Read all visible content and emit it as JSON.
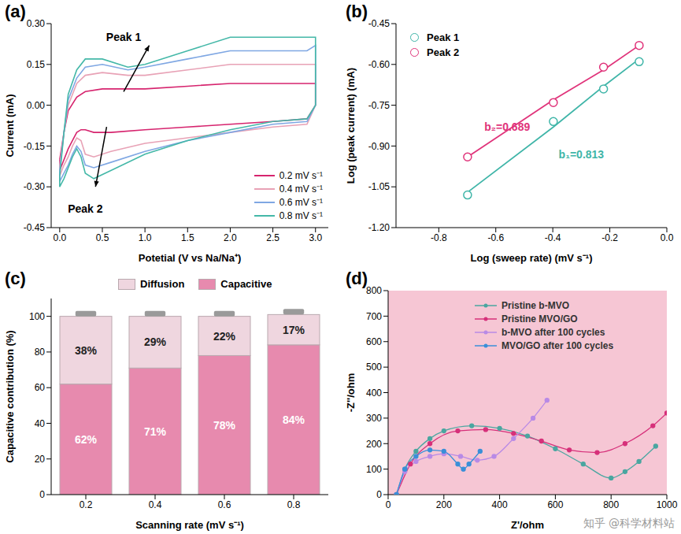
{
  "chart_data": [
    {
      "title": "(a)",
      "type": "line",
      "x_label": "Potetial (V vs Na/Na⁺)",
      "y_label": "Current (mA)",
      "xlim": [
        -0.1,
        3.15
      ],
      "xticks": [
        {
          "value": 0,
          "label": "0.0"
        },
        0.5,
        {
          "value": 1,
          "label": "1.0"
        },
        1.5,
        {
          "value": 2,
          "label": "2.0"
        },
        2.5,
        {
          "value": 3,
          "label": "3.0"
        }
      ],
      "ylim": [
        -0.45,
        0.3
      ],
      "yticks": [
        -0.45,
        {
          "value": -0.3,
          "label": "-0.30"
        },
        -0.15,
        {
          "value": 0,
          "label": "0.00"
        },
        0.15,
        {
          "value": 0.3,
          "label": "0.30"
        }
      ],
      "legend": "lower right",
      "line_style": "solid",
      "series": [
        {
          "name": "0.2 mV s⁻¹",
          "color": "#d6246e",
          "x": [
            0,
            0.05,
            0.1,
            0.2,
            0.3,
            0.5,
            0.8,
            1.0,
            1.5,
            2.0,
            2.5,
            2.9,
            3.0,
            3.0,
            2.9,
            2.5,
            2.0,
            1.5,
            1.0,
            0.6,
            0.4,
            0.3,
            0.25,
            0.2,
            0.15,
            0.1,
            0.05,
            0.0,
            0.0
          ],
          "values": [
            -0.2,
            -0.1,
            -0.02,
            0.03,
            0.05,
            0.06,
            0.06,
            0.06,
            0.07,
            0.08,
            0.08,
            0.08,
            0.08,
            0.0,
            -0.05,
            -0.06,
            -0.07,
            -0.08,
            -0.09,
            -0.1,
            -0.1,
            -0.09,
            -0.09,
            -0.1,
            -0.13,
            -0.16,
            -0.2,
            -0.24,
            -0.2
          ]
        },
        {
          "name": "0.4 mV s⁻¹",
          "color": "#e8a2b6",
          "x": [
            0,
            0.05,
            0.1,
            0.2,
            0.3,
            0.5,
            0.8,
            1.0,
            1.5,
            2.0,
            2.5,
            2.9,
            3.0,
            3.0,
            2.9,
            2.5,
            2.0,
            1.5,
            1.0,
            0.6,
            0.4,
            0.3,
            0.25,
            0.2,
            0.15,
            0.1,
            0.05,
            0.0,
            0.0
          ],
          "values": [
            -0.22,
            -0.1,
            0.0,
            0.08,
            0.11,
            0.12,
            0.11,
            0.11,
            0.13,
            0.15,
            0.15,
            0.15,
            0.15,
            0.0,
            -0.07,
            -0.08,
            -0.1,
            -0.12,
            -0.14,
            -0.17,
            -0.19,
            -0.18,
            -0.13,
            -0.12,
            -0.15,
            -0.19,
            -0.22,
            -0.26,
            -0.22
          ]
        },
        {
          "name": "0.6 mV s⁻¹",
          "color": "#7fa7e3",
          "x": [
            0,
            0.05,
            0.1,
            0.2,
            0.3,
            0.5,
            0.8,
            1.0,
            1.5,
            2.0,
            2.5,
            2.9,
            3.0,
            3.0,
            2.9,
            2.5,
            2.0,
            1.5,
            1.0,
            0.6,
            0.4,
            0.3,
            0.25,
            0.2,
            0.15,
            0.1,
            0.05,
            0.0,
            0.0
          ],
          "values": [
            -0.24,
            -0.1,
            0.02,
            0.1,
            0.14,
            0.15,
            0.13,
            0.14,
            0.17,
            0.2,
            0.2,
            0.2,
            0.22,
            0.0,
            -0.06,
            -0.07,
            -0.1,
            -0.13,
            -0.17,
            -0.21,
            -0.23,
            -0.22,
            -0.17,
            -0.15,
            -0.18,
            -0.22,
            -0.25,
            -0.28,
            -0.24
          ]
        },
        {
          "name": "0.8 mV s⁻¹",
          "color": "#44b8a8",
          "x": [
            0,
            0.05,
            0.1,
            0.2,
            0.3,
            0.5,
            0.8,
            1.0,
            1.5,
            2.0,
            2.5,
            2.9,
            3.0,
            3.0,
            2.9,
            2.5,
            2.0,
            1.5,
            1.0,
            0.6,
            0.4,
            0.3,
            0.25,
            0.2,
            0.15,
            0.1,
            0.05,
            0.0,
            0.0
          ],
          "values": [
            -0.26,
            -0.1,
            0.04,
            0.13,
            0.17,
            0.17,
            0.14,
            0.15,
            0.2,
            0.25,
            0.25,
            0.25,
            0.25,
            0.0,
            -0.05,
            -0.06,
            -0.09,
            -0.13,
            -0.18,
            -0.24,
            -0.27,
            -0.25,
            -0.19,
            -0.16,
            -0.19,
            -0.23,
            -0.27,
            -0.3,
            -0.26
          ]
        }
      ],
      "annotations": [
        {
          "text": "Peak 1",
          "x": 0.75,
          "y": 0.25,
          "color": "#000000",
          "arrow": [
            [
              0.75,
              0.05
            ],
            [
              1.05,
              0.22
            ]
          ]
        },
        {
          "text": "Peak 2",
          "x": 0.3,
          "y": -0.38,
          "color": "#000000",
          "arrow": [
            [
              0.55,
              -0.08
            ],
            [
              0.42,
              -0.3
            ]
          ]
        }
      ]
    },
    {
      "title": "(b)",
      "type": "scatter",
      "x_label": "Log (sweep rate) (mV s⁻¹)",
      "y_label": "Log (peak current) (mA)",
      "xlim": [
        -0.95,
        0
      ],
      "xticks": [
        -0.8,
        -0.6,
        -0.4,
        -0.2,
        {
          "value": 0,
          "label": "0.0"
        }
      ],
      "ylim": [
        -1.2,
        -0.45
      ],
      "yticks": [
        {
          "value": -1.2,
          "label": "-1.20"
        },
        -1.05,
        {
          "value": -0.9,
          "label": "-0.90"
        },
        -0.75,
        {
          "value": -0.6,
          "label": "-0.60"
        },
        -0.45
      ],
      "legend": "upper left",
      "marker": "circle",
      "x": [
        -0.699,
        -0.398,
        -0.222,
        -0.097
      ],
      "series": [
        {
          "name": "Peak 1",
          "color": "#3fb5a8",
          "values": [
            -1.08,
            -0.81,
            -0.69,
            -0.59
          ],
          "fit": [
            -1.07,
            -0.83,
            -0.68,
            -0.58
          ]
        },
        {
          "name": "Peak 2",
          "color": "#e0337a",
          "values": [
            -0.94,
            -0.74,
            -0.61,
            -0.53
          ],
          "fit": [
            -0.94,
            -0.73,
            -0.62,
            -0.53
          ]
        }
      ],
      "annotations": [
        {
          "text": "b₂=0.689",
          "x": -0.56,
          "y": -0.83,
          "color": "#e0337a"
        },
        {
          "text": "b₁=0.813",
          "x": -0.3,
          "y": -0.93,
          "color": "#3fb5a8"
        }
      ]
    },
    {
      "title": "(c)",
      "type": "bar",
      "stacked": true,
      "data_labels": true,
      "x_label": "Scanning rate (mV s⁻¹)",
      "y_label": "Capacitive contribution (%)",
      "categories": [
        "0.2",
        "0.4",
        "0.6",
        "0.8"
      ],
      "ylim": [
        0,
        110
      ],
      "yticks": [
        0,
        20,
        40,
        60,
        80,
        100
      ],
      "legend": "top",
      "series": [
        {
          "name": "Diffusion",
          "color": "#efd6df",
          "values": [
            38,
            29,
            22,
            17
          ],
          "value_labels": [
            "38%",
            "29%",
            "22%",
            "17%"
          ]
        },
        {
          "name": "Capacitive",
          "color": "#e78aae",
          "values": [
            62,
            71,
            78,
            84
          ],
          "value_labels": [
            "62%",
            "71%",
            "78%",
            "84%"
          ]
        }
      ]
    },
    {
      "title": "(d)",
      "type": "line",
      "marker": "circle",
      "x_label": "Z'/ohm",
      "y_label": "-Z''/ohm",
      "xlim": [
        0,
        1000
      ],
      "xticks": [
        0,
        200,
        400,
        600,
        800,
        1000
      ],
      "ylim": [
        0,
        800
      ],
      "yticks": [
        0,
        100,
        200,
        300,
        400,
        500,
        600,
        700,
        800
      ],
      "legend": "upper right",
      "watermark": "知乎 @科学材料站",
      "series": [
        {
          "name": "Pristine b-MVO",
          "color": "#4aa6a0",
          "x": [
            30,
            60,
            100,
            150,
            200,
            300,
            400,
            500,
            600,
            700,
            800,
            850,
            900,
            960
          ],
          "values": [
            0,
            100,
            170,
            220,
            250,
            270,
            260,
            230,
            180,
            120,
            65,
            90,
            130,
            190
          ]
        },
        {
          "name": "Pristine MVO/GO",
          "color": "#d6307a",
          "x": [
            30,
            80,
            150,
            250,
            350,
            450,
            550,
            650,
            750,
            850,
            950,
            1000
          ],
          "values": [
            0,
            120,
            200,
            250,
            255,
            240,
            210,
            175,
            165,
            200,
            270,
            320
          ]
        },
        {
          "name": "b-MVO after 100 cycles",
          "color": "#b88ae6",
          "x": [
            30,
            60,
            100,
            150,
            200,
            260,
            320,
            380,
            450,
            520,
            570
          ],
          "values": [
            0,
            90,
            130,
            150,
            160,
            150,
            135,
            150,
            220,
            300,
            370
          ]
        },
        {
          "name": "MVO/GO after 100 cycles",
          "color": "#3a8fd8",
          "x": [
            30,
            60,
            100,
            150,
            200,
            250,
            270,
            290,
            330
          ],
          "values": [
            0,
            100,
            150,
            175,
            170,
            120,
            100,
            120,
            170
          ]
        }
      ]
    }
  ]
}
